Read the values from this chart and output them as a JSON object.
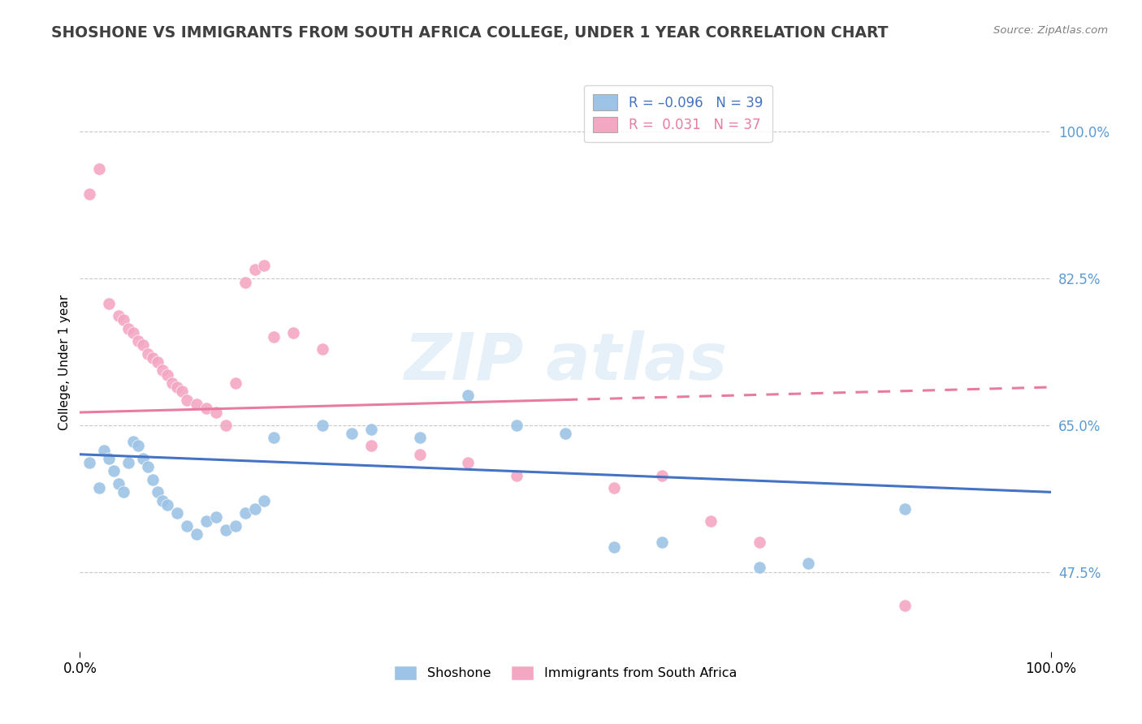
{
  "title": "SHOSHONE VS IMMIGRANTS FROM SOUTH AFRICA COLLEGE, UNDER 1 YEAR CORRELATION CHART",
  "source": "Source: ZipAtlas.com",
  "ylabel": "College, Under 1 year",
  "y_ticks": [
    47.5,
    65.0,
    82.5,
    100.0
  ],
  "y_tick_labels": [
    "47.5%",
    "65.0%",
    "82.5%",
    "100.0%"
  ],
  "x_min": 0.0,
  "x_max": 100.0,
  "y_min": 38.0,
  "y_max": 107.0,
  "shoshone_color": "#9dc3e6",
  "immigrants_color": "#f4a7c3",
  "shoshone_line_color": "#4472c4",
  "immigrants_line_color": "#e87ca0",
  "watermark_text": "ZIPatlas",
  "blue_scatter": [
    [
      1.0,
      60.5
    ],
    [
      2.0,
      57.5
    ],
    [
      2.5,
      62.0
    ],
    [
      3.0,
      61.0
    ],
    [
      3.5,
      59.5
    ],
    [
      4.0,
      58.0
    ],
    [
      4.5,
      57.0
    ],
    [
      5.0,
      60.5
    ],
    [
      5.5,
      63.0
    ],
    [
      6.0,
      62.5
    ],
    [
      6.5,
      61.0
    ],
    [
      7.0,
      60.0
    ],
    [
      7.5,
      58.5
    ],
    [
      8.0,
      57.0
    ],
    [
      8.5,
      56.0
    ],
    [
      9.0,
      55.5
    ],
    [
      10.0,
      54.5
    ],
    [
      11.0,
      53.0
    ],
    [
      12.0,
      52.0
    ],
    [
      13.0,
      53.5
    ],
    [
      14.0,
      54.0
    ],
    [
      15.0,
      52.5
    ],
    [
      16.0,
      53.0
    ],
    [
      17.0,
      54.5
    ],
    [
      18.0,
      55.0
    ],
    [
      19.0,
      56.0
    ],
    [
      20.0,
      63.5
    ],
    [
      25.0,
      65.0
    ],
    [
      28.0,
      64.0
    ],
    [
      30.0,
      64.5
    ],
    [
      35.0,
      63.5
    ],
    [
      40.0,
      68.5
    ],
    [
      45.0,
      65.0
    ],
    [
      50.0,
      64.0
    ],
    [
      55.0,
      50.5
    ],
    [
      60.0,
      51.0
    ],
    [
      70.0,
      48.0
    ],
    [
      75.0,
      48.5
    ],
    [
      85.0,
      55.0
    ]
  ],
  "pink_scatter": [
    [
      1.0,
      92.5
    ],
    [
      2.0,
      95.5
    ],
    [
      3.0,
      79.5
    ],
    [
      4.0,
      78.0
    ],
    [
      4.5,
      77.5
    ],
    [
      5.0,
      76.5
    ],
    [
      5.5,
      76.0
    ],
    [
      6.0,
      75.0
    ],
    [
      6.5,
      74.5
    ],
    [
      7.0,
      73.5
    ],
    [
      7.5,
      73.0
    ],
    [
      8.0,
      72.5
    ],
    [
      8.5,
      71.5
    ],
    [
      9.0,
      71.0
    ],
    [
      9.5,
      70.0
    ],
    [
      10.0,
      69.5
    ],
    [
      10.5,
      69.0
    ],
    [
      11.0,
      68.0
    ],
    [
      12.0,
      67.5
    ],
    [
      13.0,
      67.0
    ],
    [
      14.0,
      66.5
    ],
    [
      15.0,
      65.0
    ],
    [
      16.0,
      70.0
    ],
    [
      17.0,
      82.0
    ],
    [
      18.0,
      83.5
    ],
    [
      19.0,
      84.0
    ],
    [
      20.0,
      75.5
    ],
    [
      22.0,
      76.0
    ],
    [
      25.0,
      74.0
    ],
    [
      30.0,
      62.5
    ],
    [
      35.0,
      61.5
    ],
    [
      40.0,
      60.5
    ],
    [
      45.0,
      59.0
    ],
    [
      55.0,
      57.5
    ],
    [
      60.0,
      59.0
    ],
    [
      65.0,
      53.5
    ],
    [
      70.0,
      51.0
    ],
    [
      85.0,
      43.5
    ]
  ],
  "shoshone_trend": {
    "x_start": 0.0,
    "y_start": 61.5,
    "x_end": 100.0,
    "y_end": 57.0
  },
  "immigrants_trend_solid": {
    "x_start": 0.0,
    "y_start": 66.5,
    "x_end": 50.0,
    "y_end": 68.0
  },
  "immigrants_trend_dashed": {
    "x_start": 50.0,
    "y_start": 68.0,
    "x_end": 100.0,
    "y_end": 69.5
  }
}
